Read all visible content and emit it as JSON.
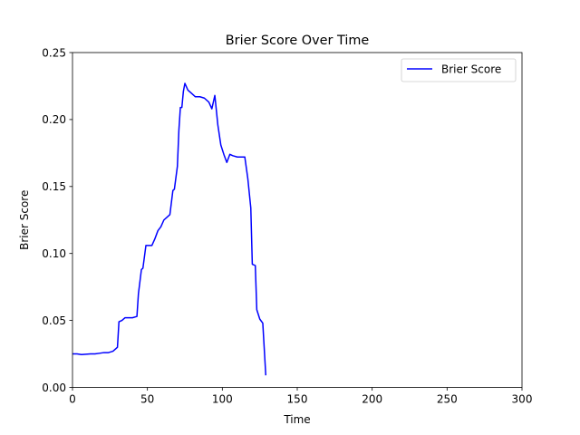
{
  "chart_data": {
    "type": "line",
    "title": "Brier Score Over Time",
    "xlabel": "Time",
    "ylabel": "Brier Score",
    "xlim": [
      0,
      300
    ],
    "ylim": [
      0,
      0.25
    ],
    "x_ticks": [
      0,
      50,
      100,
      150,
      200,
      250,
      300
    ],
    "x_tick_labels": [
      "0",
      "50",
      "100",
      "150",
      "200",
      "250",
      "300"
    ],
    "y_ticks": [
      0,
      0.05,
      0.1,
      0.15,
      0.2,
      0.25
    ],
    "y_tick_labels": [
      "0.00",
      "0.05",
      "0.10",
      "0.15",
      "0.20",
      "0.25"
    ],
    "grid": false,
    "legend": {
      "position": "top-right",
      "entries": [
        "Brier Score"
      ]
    },
    "series": [
      {
        "name": "Brier Score",
        "color": "#0000ff",
        "x": [
          0,
          3,
          6,
          9,
          12,
          15,
          18,
          21,
          24,
          27,
          30,
          31,
          33,
          35,
          37,
          40,
          43,
          44,
          46,
          47,
          49,
          51,
          53,
          55,
          57,
          59,
          61,
          63,
          65,
          67,
          68,
          70,
          71,
          72,
          73,
          74,
          75,
          77,
          79,
          82,
          85,
          88,
          91,
          93,
          95,
          97,
          99,
          101,
          103,
          105,
          107,
          110,
          113,
          115,
          117,
          119,
          120,
          122,
          123,
          125,
          127,
          129
        ],
        "y": [
          0.025,
          0.025,
          0.0245,
          0.0248,
          0.025,
          0.025,
          0.0255,
          0.026,
          0.026,
          0.027,
          0.03,
          0.049,
          0.05,
          0.052,
          0.052,
          0.052,
          0.053,
          0.07,
          0.088,
          0.089,
          0.106,
          0.106,
          0.106,
          0.111,
          0.117,
          0.12,
          0.125,
          0.127,
          0.129,
          0.147,
          0.148,
          0.165,
          0.192,
          0.209,
          0.209,
          0.221,
          0.227,
          0.222,
          0.22,
          0.217,
          0.217,
          0.216,
          0.213,
          0.208,
          0.218,
          0.196,
          0.181,
          0.174,
          0.168,
          0.174,
          0.173,
          0.172,
          0.172,
          0.172,
          0.156,
          0.134,
          0.092,
          0.091,
          0.058,
          0.051,
          0.048,
          0.009
        ]
      }
    ]
  }
}
